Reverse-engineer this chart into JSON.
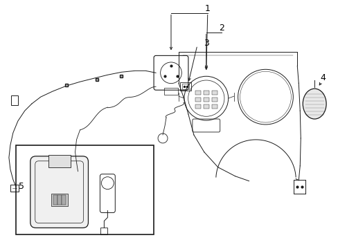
{
  "background_color": "#ffffff",
  "line_color": "#1a1a1a",
  "label_color": "#000000",
  "figure_width": 4.89,
  "figure_height": 3.6,
  "dpi": 100
}
